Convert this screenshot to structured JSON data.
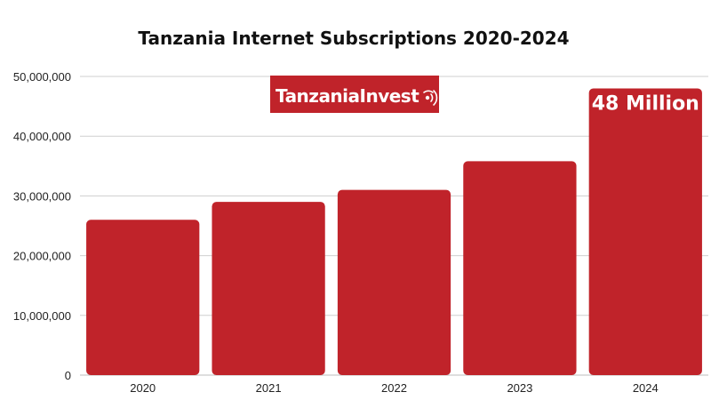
{
  "chart_data": {
    "type": "bar",
    "title": "Tanzania Internet Subscriptions 2020-2024",
    "xlabel": "",
    "ylabel": "",
    "categories": [
      "2020",
      "2021",
      "2022",
      "2023",
      "2024"
    ],
    "values": [
      26000000,
      29000000,
      31000000,
      35800000,
      48000000
    ],
    "ylim": [
      0,
      50000000
    ],
    "yticks": [
      "0",
      "10,000,000",
      "20,000,000",
      "30,000,000",
      "40,000,000",
      "50,000,000"
    ],
    "ytick_values": [
      0,
      10000000,
      20000000,
      30000000,
      40000000,
      50000000
    ],
    "grid": true,
    "bar_color": "#c0232a",
    "annotation": {
      "text": "48 Million",
      "category": "2024"
    }
  },
  "logo": {
    "text": "TanzaniaInvest",
    "background": "#c0232a"
  }
}
